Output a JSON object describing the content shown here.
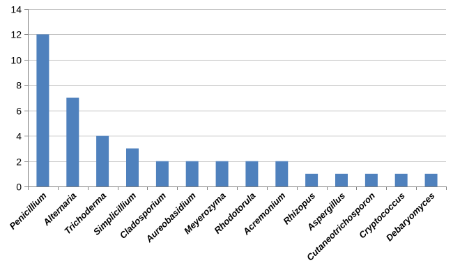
{
  "chart_data": {
    "type": "bar",
    "categories": [
      "Penicillium",
      "Alternaria",
      "Trichoderma",
      "Simplicillium",
      "Cladosporium",
      "Aureobasidium",
      "Meyerozyma",
      "Rhodotorula",
      "Acremonium",
      "Rhizopus",
      "Aspergillus",
      "Cutaneotrichosporon",
      "Cryptococcus",
      "Debaryomyces"
    ],
    "values": [
      12,
      7,
      4,
      3,
      2,
      2,
      2,
      2,
      2,
      1,
      1,
      1,
      1,
      1
    ],
    "ylim": [
      0,
      14
    ],
    "yticks": [
      "0",
      "2",
      "4",
      "6",
      "8",
      "10",
      "12",
      "14"
    ],
    "grid": true,
    "bar_color": "#4f81bd",
    "title": "",
    "xlabel": "",
    "ylabel": ""
  }
}
